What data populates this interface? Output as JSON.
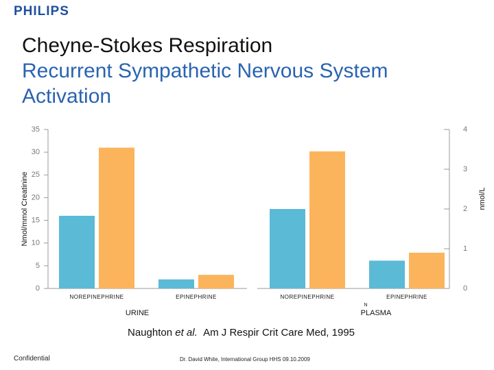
{
  "header": {
    "logo": "PHILIPS"
  },
  "title": "Cheyne-Stokes Respiration",
  "subtitle": [
    "Recurrent Sympathetic Nervous System",
    "Activation"
  ],
  "chart_data": {
    "type": "bar",
    "categories": [
      "NOREPINEPHRINE",
      "EPINEPHRINE",
      "NOREPINEPHRINE",
      "EPINEPHRINE"
    ],
    "groups": [
      "URINE",
      "PLASMA"
    ],
    "marker": "N",
    "y_label": "Nmol/mmol Creatinine",
    "y2_label": "nmol/L",
    "ylim": [
      0,
      35
    ],
    "yticks": [
      0,
      5,
      10,
      15,
      20,
      25,
      30,
      35
    ],
    "y2lim": [
      0,
      4
    ],
    "y2ticks": [
      0,
      1,
      2,
      3,
      4
    ],
    "series": [
      {
        "color": "#5bbad6",
        "values": [
          16,
          2,
          null,
          null
        ]
      },
      {
        "color": "#fbb45c",
        "values": [
          31,
          3,
          null,
          null
        ]
      },
      {
        "color": "#5bbad6",
        "axis": "y2",
        "values": [
          null,
          null,
          2.0,
          0.7
        ]
      },
      {
        "color": "#fbb45c",
        "axis": "y2",
        "values": [
          null,
          null,
          3.45,
          0.9
        ]
      }
    ]
  },
  "citation": {
    "author": "Naughton",
    "etal": "et al.",
    "source": "Am J Respir Crit Care Med, 1995"
  },
  "footer": {
    "left": "Confidential",
    "center": "Dr. David White, International Group HHS 09.10.2009"
  }
}
